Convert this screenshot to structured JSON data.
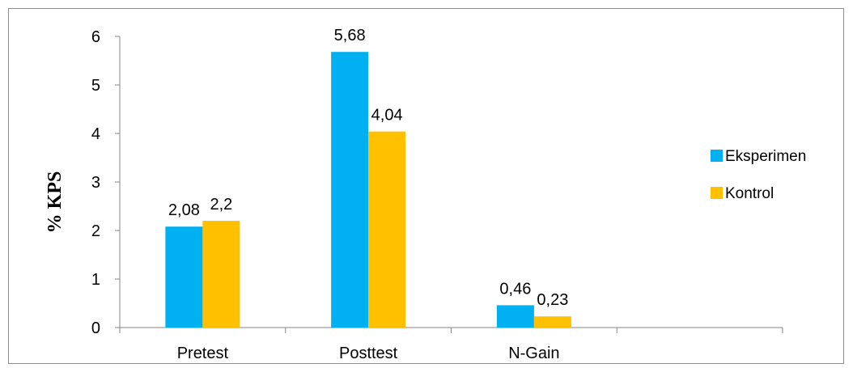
{
  "chart_data": {
    "type": "bar",
    "categories": [
      "Pretest",
      "Posttest",
      "N-Gain",
      ""
    ],
    "series": [
      {
        "name": "Eksperimen",
        "color": "#00b0f0",
        "values": [
          2.08,
          5.68,
          0.46,
          null
        ],
        "labels": [
          "2,08",
          "5,68",
          "0,46",
          ""
        ]
      },
      {
        "name": "Kontrol",
        "color": "#ffc000",
        "values": [
          2.2,
          4.04,
          0.23,
          null
        ],
        "labels": [
          "2,2",
          "4,04",
          "0,23",
          ""
        ]
      }
    ],
    "title": "",
    "xlabel": "",
    "ylabel": "% KPS",
    "ylim": [
      0,
      6
    ],
    "yticks": [
      "0",
      "1",
      "2",
      "3",
      "4",
      "5",
      "6"
    ],
    "grid": false,
    "legend": "right"
  }
}
